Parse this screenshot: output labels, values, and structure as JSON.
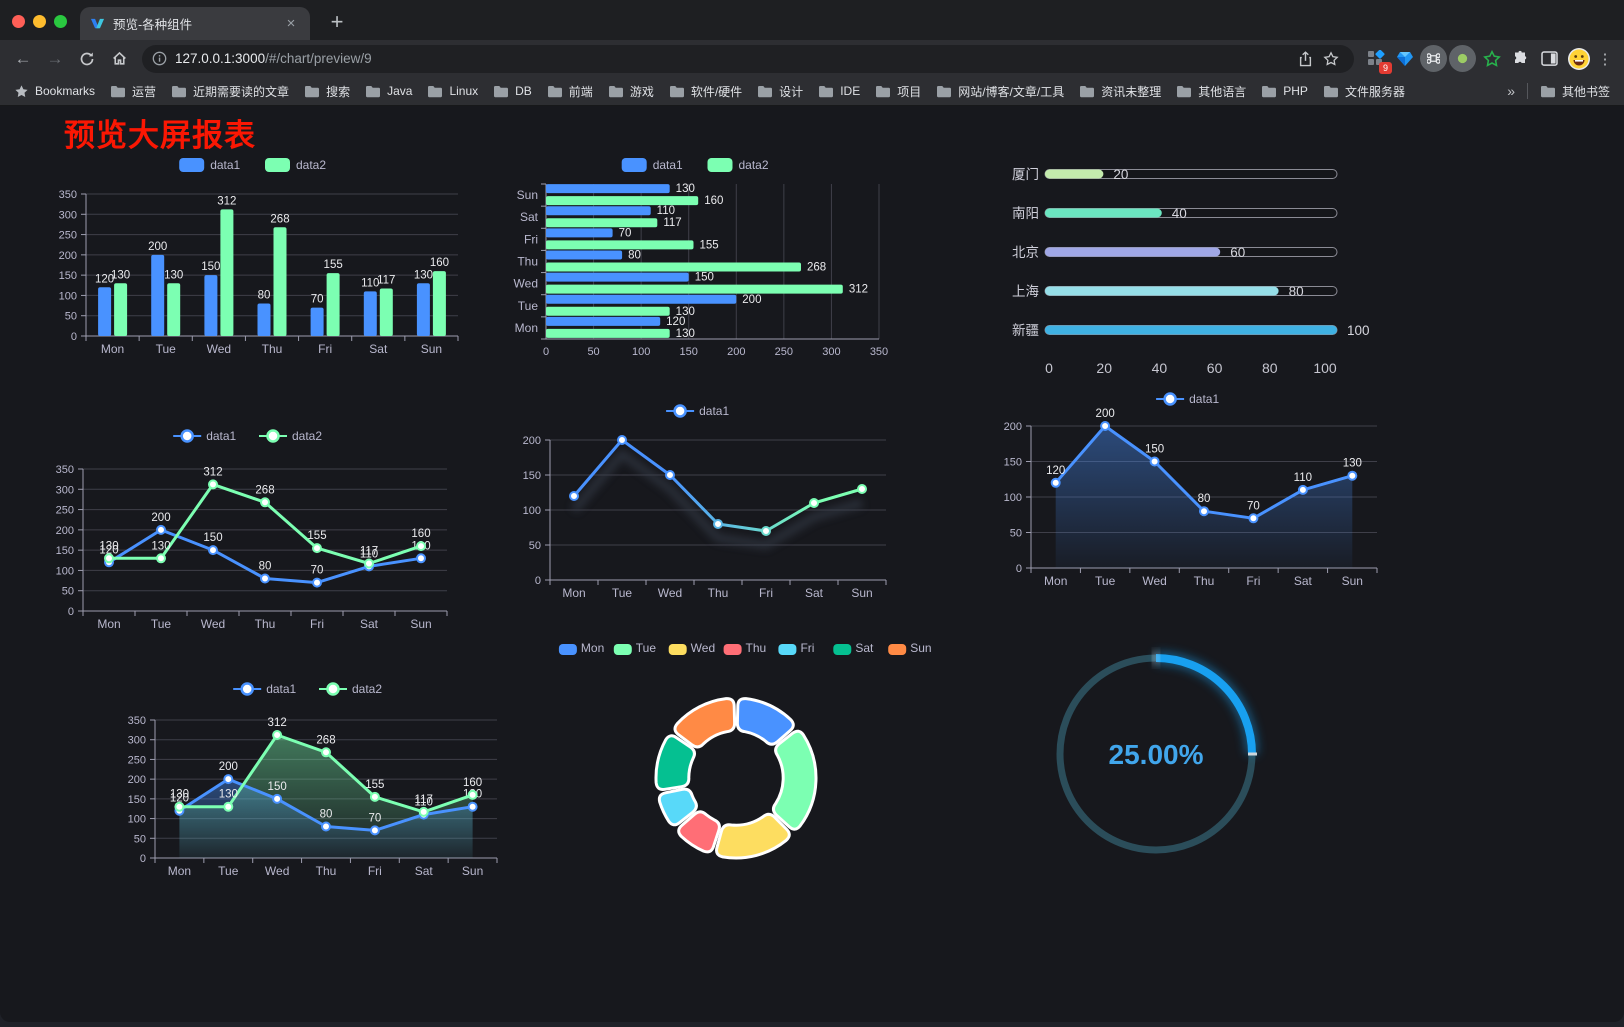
{
  "browser": {
    "tab_title": "预览-各种组件",
    "url_host": "127.0.0.1:3000",
    "url_path": "/#/chart/preview/9",
    "extension_badge": "9",
    "icons": {
      "back": "←",
      "forward": "→",
      "new_tab": "+",
      "tab_close": "×",
      "overflow_chevron": "»",
      "menu_kebab": "⋮"
    },
    "bookmarks_label": "Bookmarks",
    "bookmarks": [
      "运营",
      "近期需要读的文章",
      "搜索",
      "Java",
      "Linux",
      "DB",
      "前端",
      "游戏",
      "软件/硬件",
      "设计",
      "IDE",
      "项目",
      "网站/博客/文章/工具",
      "资讯未整理",
      "其他语言",
      "PHP",
      "文件服务器"
    ],
    "other_bookmarks_label": "其他书签"
  },
  "page": {
    "title": "预览大屏报表",
    "title_color": "#fb1703",
    "background": "#17181d"
  },
  "theme": {
    "axis_label_color": "#b9b8ce",
    "axis_line_color": "#9d9daf",
    "grid_line_color": "#3f3f49",
    "value_label_color": "#ebebee",
    "series_blue": "#4992ff",
    "series_green": "#7cffb2"
  },
  "chart_data": [
    {
      "id": "grouped-bar",
      "type": "bar",
      "categories": [
        "Mon",
        "Tue",
        "Wed",
        "Thu",
        "Fri",
        "Sat",
        "Sun"
      ],
      "series": [
        {
          "name": "data1",
          "color": "#4992ff",
          "values": [
            120,
            200,
            150,
            80,
            70,
            110,
            130
          ]
        },
        {
          "name": "data2",
          "color": "#7cffb2",
          "values": [
            130,
            130,
            312,
            268,
            155,
            117,
            160
          ]
        }
      ],
      "ylim": [
        0,
        350
      ],
      "yticks": [
        0,
        50,
        100,
        150,
        200,
        250,
        300,
        350
      ],
      "legend_position": "top",
      "grid": true
    },
    {
      "id": "horizontal-bar",
      "type": "bar-horizontal",
      "categories_top_to_bottom": [
        "Sun",
        "Sat",
        "Fri",
        "Thu",
        "Wed",
        "Tue",
        "Mon"
      ],
      "series": [
        {
          "name": "data1",
          "color": "#4992ff",
          "values_top_to_bottom": [
            130,
            110,
            70,
            80,
            150,
            200,
            120
          ]
        },
        {
          "name": "data2",
          "color": "#7cffb2",
          "values_top_to_bottom": [
            160,
            117,
            155,
            268,
            312,
            130,
            130
          ]
        }
      ],
      "xlim": [
        0,
        350
      ],
      "xticks": [
        0,
        50,
        100,
        150,
        200,
        250,
        300,
        350
      ],
      "legend_position": "top",
      "grid": true
    },
    {
      "id": "progress-bars",
      "type": "bar",
      "max": 100,
      "xticks": [
        0,
        20,
        40,
        60,
        80,
        100
      ],
      "rows": [
        {
          "label": "厦门",
          "value": 20,
          "color": "#c4ebad"
        },
        {
          "label": "南阳",
          "value": 40,
          "color": "#6be6c1"
        },
        {
          "label": "北京",
          "value": 60,
          "color": "#a0a7e6"
        },
        {
          "label": "上海",
          "value": 80,
          "color": "#96dee8"
        },
        {
          "label": "新疆",
          "value": 100,
          "color": "#3fb1e3"
        }
      ]
    },
    {
      "id": "line-two-series",
      "type": "line",
      "categories": [
        "Mon",
        "Tue",
        "Wed",
        "Thu",
        "Fri",
        "Sat",
        "Sun"
      ],
      "series": [
        {
          "name": "data1",
          "color": "#4992ff",
          "values": [
            120,
            200,
            150,
            80,
            70,
            110,
            130
          ]
        },
        {
          "name": "data2",
          "color": "#7cffb2",
          "values": [
            130,
            130,
            312,
            268,
            155,
            117,
            160
          ]
        }
      ],
      "ylim": [
        0,
        350
      ],
      "yticks": [
        0,
        50,
        100,
        150,
        200,
        250,
        300,
        350
      ],
      "point_labels": true,
      "legend_position": "top"
    },
    {
      "id": "gradient-line",
      "type": "line",
      "categories": [
        "Mon",
        "Tue",
        "Wed",
        "Thu",
        "Fri",
        "Sat",
        "Sun"
      ],
      "series": [
        {
          "name": "data1",
          "color": "#4992ff",
          "color_gradient": [
            "#4992ff",
            "#7cffb2"
          ],
          "values": [
            120,
            200,
            150,
            80,
            70,
            110,
            130
          ]
        }
      ],
      "ylim": [
        0,
        200
      ],
      "yticks": [
        0,
        50,
        100,
        150,
        200
      ],
      "shadow": true,
      "point_labels": false,
      "legend_position": "top"
    },
    {
      "id": "blue-area-line",
      "type": "area",
      "categories": [
        "Mon",
        "Tue",
        "Wed",
        "Thu",
        "Fri",
        "Sat",
        "Sun"
      ],
      "series": [
        {
          "name": "data1",
          "color": "#4992ff",
          "values": [
            120,
            200,
            150,
            80,
            70,
            110,
            130
          ]
        }
      ],
      "ylim": [
        0,
        200
      ],
      "yticks": [
        0,
        50,
        100,
        150,
        200
      ],
      "point_labels": true,
      "legend_position": "top"
    },
    {
      "id": "two-series-area",
      "type": "area",
      "categories": [
        "Mon",
        "Tue",
        "Wed",
        "Thu",
        "Fri",
        "Sat",
        "Sun"
      ],
      "series": [
        {
          "name": "data1",
          "color": "#4992ff",
          "values": [
            120,
            200,
            150,
            80,
            70,
            110,
            130
          ]
        },
        {
          "name": "data2",
          "color": "#7cffb2",
          "values": [
            130,
            130,
            312,
            268,
            155,
            117,
            160
          ]
        }
      ],
      "ylim": [
        0,
        350
      ],
      "yticks": [
        0,
        50,
        100,
        150,
        200,
        250,
        300,
        350
      ],
      "point_labels": true,
      "legend_position": "top"
    },
    {
      "id": "donut",
      "type": "pie",
      "categories": [
        "Mon",
        "Tue",
        "Wed",
        "Thu",
        "Fri",
        "Sat",
        "Sun"
      ],
      "values": [
        120,
        200,
        150,
        80,
        70,
        110,
        130
      ],
      "colors": [
        "#4992ff",
        "#7cffb2",
        "#fddd60",
        "#ff6e76",
        "#58d9f9",
        "#05c091",
        "#ff8a45"
      ],
      "inner_radius_ratio": 0.59,
      "border_color": "#ffffff",
      "legend_position": "top"
    },
    {
      "id": "gauge",
      "type": "gauge",
      "value": 25,
      "label": "25.00%",
      "track_color": "#2b4d5a",
      "arc_color": "#18a0f0",
      "text_color": "#41a6ec"
    }
  ]
}
